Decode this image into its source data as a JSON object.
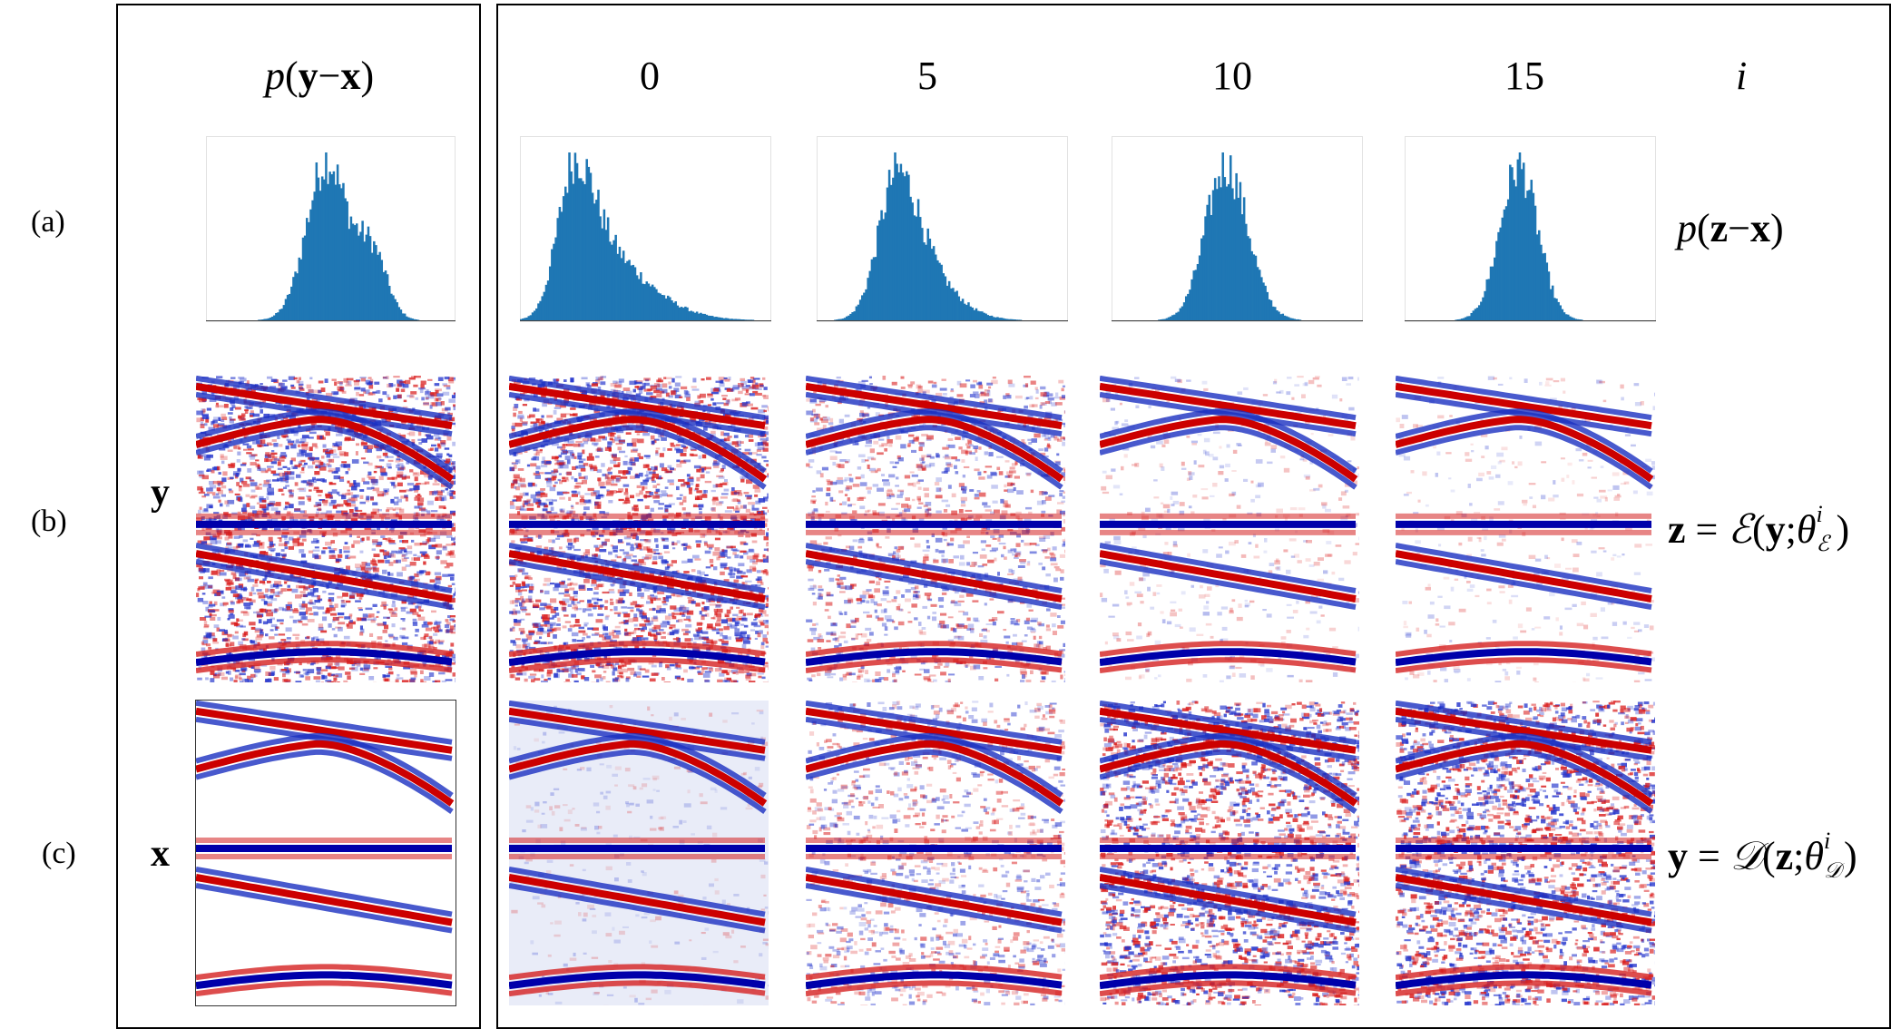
{
  "column_header_left": "p(y − x)",
  "column_header_left_parts": {
    "p": "p",
    "y": "y",
    "minus": "−",
    "x": "x"
  },
  "iterations": [
    "0",
    "5",
    "10",
    "15"
  ],
  "iteration_axis_label": "i",
  "row_labels": [
    "(a)",
    "(b)",
    "(c)"
  ],
  "side_labels": {
    "noisy": "y",
    "clean": "x"
  },
  "right_labels": {
    "row_a": {
      "p": "p",
      "z": "z",
      "minus": "−",
      "x": "x"
    },
    "row_b": {
      "z": "z",
      "eq": " = ",
      "E": "ℰ",
      "y": "y",
      "theta": "θ",
      "sup": "i",
      "sub": "ℰ"
    },
    "row_c": {
      "y": "y",
      "eq": " = ",
      "D": "𝒟",
      "z": "z",
      "theta": "θ",
      "sup": "i",
      "sub": "𝒟"
    }
  },
  "colors": {
    "blue": "#1f77b4",
    "seis_red": "#cc0000",
    "seis_blue": "#0000aa"
  },
  "histograms": [
    {
      "name": "p(y-x)",
      "mean": 0.48,
      "sd": 0.08,
      "skew": 0.0,
      "bimodal": true
    },
    {
      "name": "iter-0",
      "mean": 0.22,
      "sd": 0.07,
      "skew": 6.0,
      "bimodal": false
    },
    {
      "name": "iter-5",
      "mean": 0.32,
      "sd": 0.075,
      "skew": 3.0,
      "bimodal": false
    },
    {
      "name": "iter-10",
      "mean": 0.45,
      "sd": 0.08,
      "skew": 0.5,
      "bimodal": false
    },
    {
      "name": "iter-15",
      "mean": 0.45,
      "sd": 0.075,
      "skew": 0.0,
      "bimodal": false
    }
  ],
  "noise_levels": {
    "row_b": [
      1.0,
      1.0,
      0.55,
      0.2,
      0.15
    ],
    "row_c": [
      0.0,
      0.12,
      0.45,
      0.9,
      0.9
    ]
  }
}
